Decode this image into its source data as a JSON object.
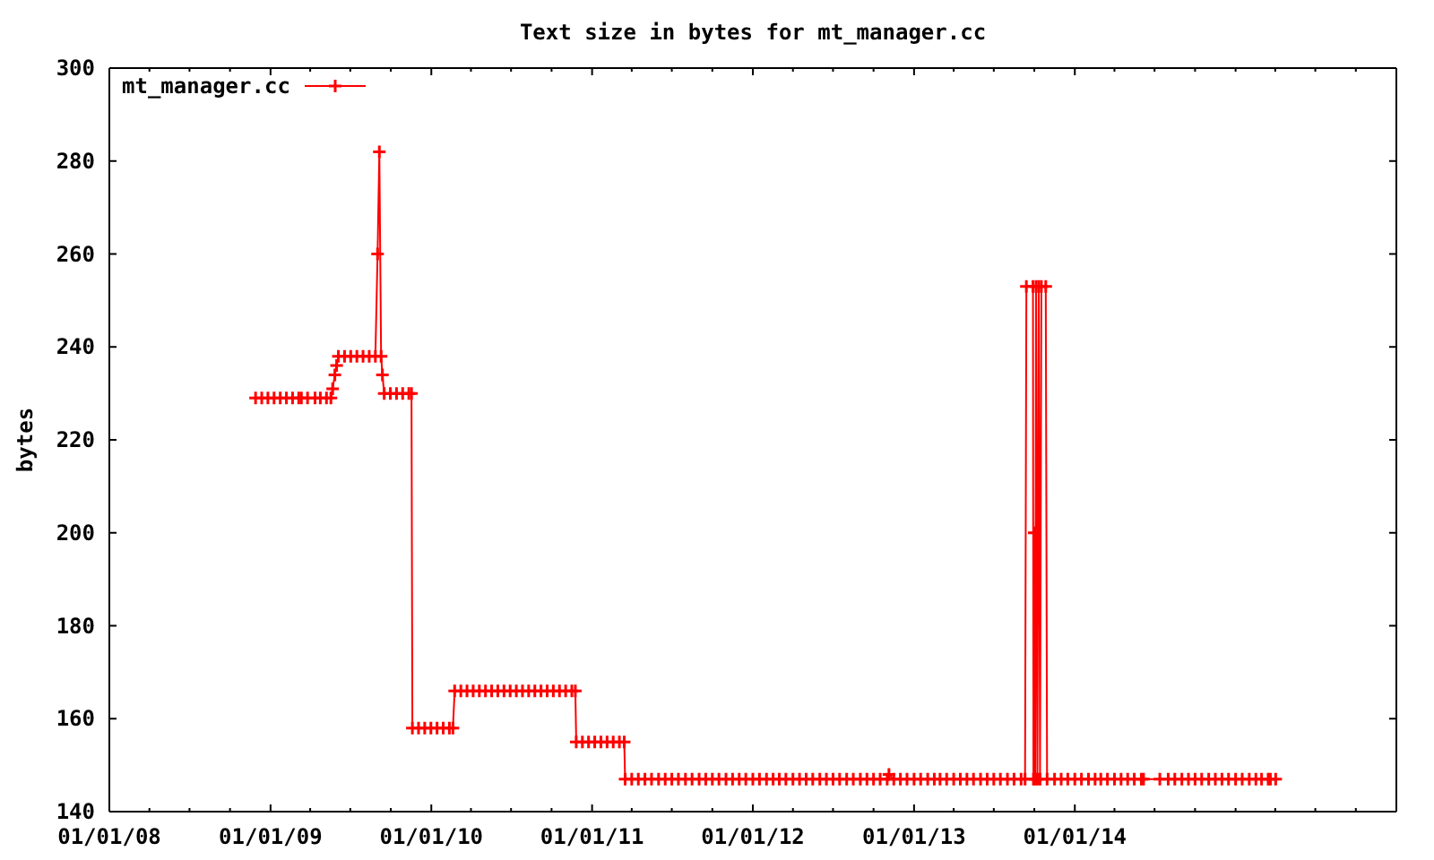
{
  "chart_data": {
    "type": "line",
    "title": "Text size in bytes for mt_manager.cc",
    "ylabel": "bytes",
    "x": [
      "2008-11-28",
      "2008-12-12",
      "2008-12-26",
      "2009-01-09",
      "2009-01-23",
      "2009-02-06",
      "2009-02-20",
      "2009-03-06",
      "2009-03-12",
      "2009-03-26",
      "2009-04-12",
      "2009-04-24",
      "2009-05-08",
      "2009-05-18",
      "2009-05-22",
      "2009-05-27",
      "2009-05-31",
      "2009-06-04",
      "2009-06-18",
      "2009-07-02",
      "2009-07-16",
      "2009-07-30",
      "2009-08-13",
      "2009-08-27",
      "2009-09-01",
      "2009-09-05",
      "2009-09-09",
      "2009-09-12",
      "2009-09-16",
      "2009-09-30",
      "2009-10-14",
      "2009-10-28",
      "2009-11-11",
      "2009-11-17",
      "2009-11-19",
      "2009-12-03",
      "2009-12-17",
      "2009-12-31",
      "2010-01-14",
      "2010-01-28",
      "2010-02-11",
      "2010-02-19",
      "2010-02-23",
      "2010-03-09",
      "2010-03-23",
      "2010-04-06",
      "2010-04-20",
      "2010-05-04",
      "2010-05-18",
      "2010-06-01",
      "2010-06-15",
      "2010-06-29",
      "2010-07-13",
      "2010-07-27",
      "2010-08-10",
      "2010-08-24",
      "2010-09-07",
      "2010-09-21",
      "2010-10-05",
      "2010-10-19",
      "2010-11-02",
      "2010-11-16",
      "2010-11-24",
      "2010-11-26",
      "2010-12-10",
      "2010-12-24",
      "2011-01-07",
      "2011-01-21",
      "2011-02-04",
      "2011-02-18",
      "2011-03-04",
      "2011-03-15",
      "2011-03-17",
      "2011-04-01",
      "2011-04-16",
      "2011-05-01",
      "2011-05-16",
      "2011-06-01",
      "2011-06-16",
      "2011-07-01",
      "2011-07-16",
      "2011-08-01",
      "2011-08-16",
      "2011-09-01",
      "2011-09-16",
      "2011-10-01",
      "2011-10-16",
      "2011-11-01",
      "2011-11-16",
      "2011-12-01",
      "2011-12-16",
      "2012-01-01",
      "2012-01-16",
      "2012-02-01",
      "2012-02-16",
      "2012-03-01",
      "2012-03-16",
      "2012-04-01",
      "2012-04-16",
      "2012-05-01",
      "2012-05-16",
      "2012-06-01",
      "2012-06-16",
      "2012-07-01",
      "2012-07-16",
      "2012-08-01",
      "2012-08-16",
      "2012-09-01",
      "2012-09-16",
      "2012-10-01",
      "2012-10-16",
      "2012-11-01",
      "2012-11-05",
      "2012-11-16",
      "2012-12-01",
      "2012-12-16",
      "2013-01-01",
      "2013-01-16",
      "2013-02-01",
      "2013-02-16",
      "2013-03-01",
      "2013-03-16",
      "2013-04-01",
      "2013-04-16",
      "2013-05-01",
      "2013-05-16",
      "2013-06-01",
      "2013-06-16",
      "2013-07-01",
      "2013-07-16",
      "2013-08-01",
      "2013-08-16",
      "2013-09-01",
      "2013-09-10",
      "2013-09-13",
      "2013-09-28",
      "2013-09-29",
      "2013-10-01",
      "2013-10-03",
      "2013-10-05",
      "2013-10-08",
      "2013-10-11",
      "2013-10-14",
      "2013-10-17",
      "2013-10-27",
      "2013-10-30",
      "2013-11-16",
      "2013-12-01",
      "2013-12-16",
      "2014-01-01",
      "2014-01-16",
      "2014-02-01",
      "2014-02-16",
      "2014-03-01",
      "2014-03-16",
      "2014-04-01",
      "2014-04-16",
      "2014-05-01",
      "2014-05-16",
      "2014-06-01",
      "2014-06-06",
      "2014-07-13",
      "2014-08-01",
      "2014-08-16",
      "2014-09-01",
      "2014-09-16",
      "2014-10-01",
      "2014-10-16",
      "2014-11-01",
      "2014-11-16",
      "2014-12-01",
      "2014-12-16",
      "2015-01-01",
      "2015-01-16",
      "2015-02-01",
      "2015-02-16",
      "2015-03-01",
      "2015-03-16",
      "2015-03-21",
      "2015-04-02"
    ],
    "series": [
      {
        "name": "mt_manager.cc",
        "color": "#ff0000",
        "values": [
          229,
          229,
          229,
          229,
          229,
          229,
          229,
          229,
          229,
          229,
          229,
          229,
          229,
          229,
          231,
          234,
          236,
          238,
          238,
          238,
          238,
          238,
          238,
          238,
          260,
          282,
          238,
          234,
          230,
          230,
          230,
          230,
          230,
          230,
          158,
          158,
          158,
          158,
          158,
          158,
          158,
          158,
          166,
          166,
          166,
          166,
          166,
          166,
          166,
          166,
          166,
          166,
          166,
          166,
          166,
          166,
          166,
          166,
          166,
          166,
          166,
          166,
          166,
          155,
          155,
          155,
          155,
          155,
          155,
          155,
          155,
          155,
          147,
          147,
          147,
          147,
          147,
          147,
          147,
          147,
          147,
          147,
          147,
          147,
          147,
          147,
          147,
          147,
          147,
          147,
          147,
          147,
          147,
          147,
          147,
          147,
          147,
          147,
          147,
          147,
          147,
          147,
          147,
          147,
          147,
          147,
          147,
          147,
          147,
          147,
          147,
          147,
          148,
          147,
          147,
          147,
          147,
          147,
          147,
          147,
          147,
          147,
          147,
          147,
          147,
          147,
          147,
          147,
          147,
          147,
          147,
          147,
          147,
          147,
          253,
          253,
          147,
          200,
          147,
          253,
          147,
          253,
          147,
          253,
          253,
          147,
          147,
          147,
          147,
          147,
          147,
          147,
          147,
          147,
          147,
          147,
          147,
          147,
          147,
          147,
          147,
          147,
          147,
          147,
          147,
          147,
          147,
          147,
          147,
          147,
          147,
          147,
          147,
          147,
          147,
          147,
          147,
          147,
          147,
          147
        ]
      }
    ],
    "xlim": [
      "2008-01-01",
      "2016-01-01"
    ],
    "xticks": [
      {
        "value": "2008-01-01",
        "label": "01/01/08"
      },
      {
        "value": "2008-04-01",
        "label": null
      },
      {
        "value": "2008-07-01",
        "label": null
      },
      {
        "value": "2008-10-01",
        "label": null
      },
      {
        "value": "2009-01-01",
        "label": "01/01/09"
      },
      {
        "value": "2009-04-01",
        "label": null
      },
      {
        "value": "2009-07-01",
        "label": null
      },
      {
        "value": "2009-10-01",
        "label": null
      },
      {
        "value": "2010-01-01",
        "label": "01/01/10"
      },
      {
        "value": "2010-04-01",
        "label": null
      },
      {
        "value": "2010-07-01",
        "label": null
      },
      {
        "value": "2010-10-01",
        "label": null
      },
      {
        "value": "2011-01-01",
        "label": "01/01/11"
      },
      {
        "value": "2011-04-01",
        "label": null
      },
      {
        "value": "2011-07-01",
        "label": null
      },
      {
        "value": "2011-10-01",
        "label": null
      },
      {
        "value": "2012-01-01",
        "label": "01/01/12"
      },
      {
        "value": "2012-04-01",
        "label": null
      },
      {
        "value": "2012-07-01",
        "label": null
      },
      {
        "value": "2012-10-01",
        "label": null
      },
      {
        "value": "2013-01-01",
        "label": "01/01/13"
      },
      {
        "value": "2013-04-01",
        "label": null
      },
      {
        "value": "2013-07-01",
        "label": null
      },
      {
        "value": "2013-10-01",
        "label": null
      },
      {
        "value": "2014-01-01",
        "label": "01/01/14"
      },
      {
        "value": "2014-04-01",
        "label": null
      },
      {
        "value": "2014-07-01",
        "label": null
      },
      {
        "value": "2014-10-01",
        "label": null
      },
      {
        "value": "2015-01-01",
        "label": null
      },
      {
        "value": "2015-04-01",
        "label": null
      },
      {
        "value": "2015-07-01",
        "label": null
      },
      {
        "value": "2015-10-01",
        "label": null
      }
    ],
    "ylim": [
      140,
      300
    ],
    "yticks": [
      140,
      160,
      180,
      200,
      220,
      240,
      260,
      280,
      300
    ],
    "legend": "top left",
    "marker": "cross",
    "line_style": "solid"
  }
}
